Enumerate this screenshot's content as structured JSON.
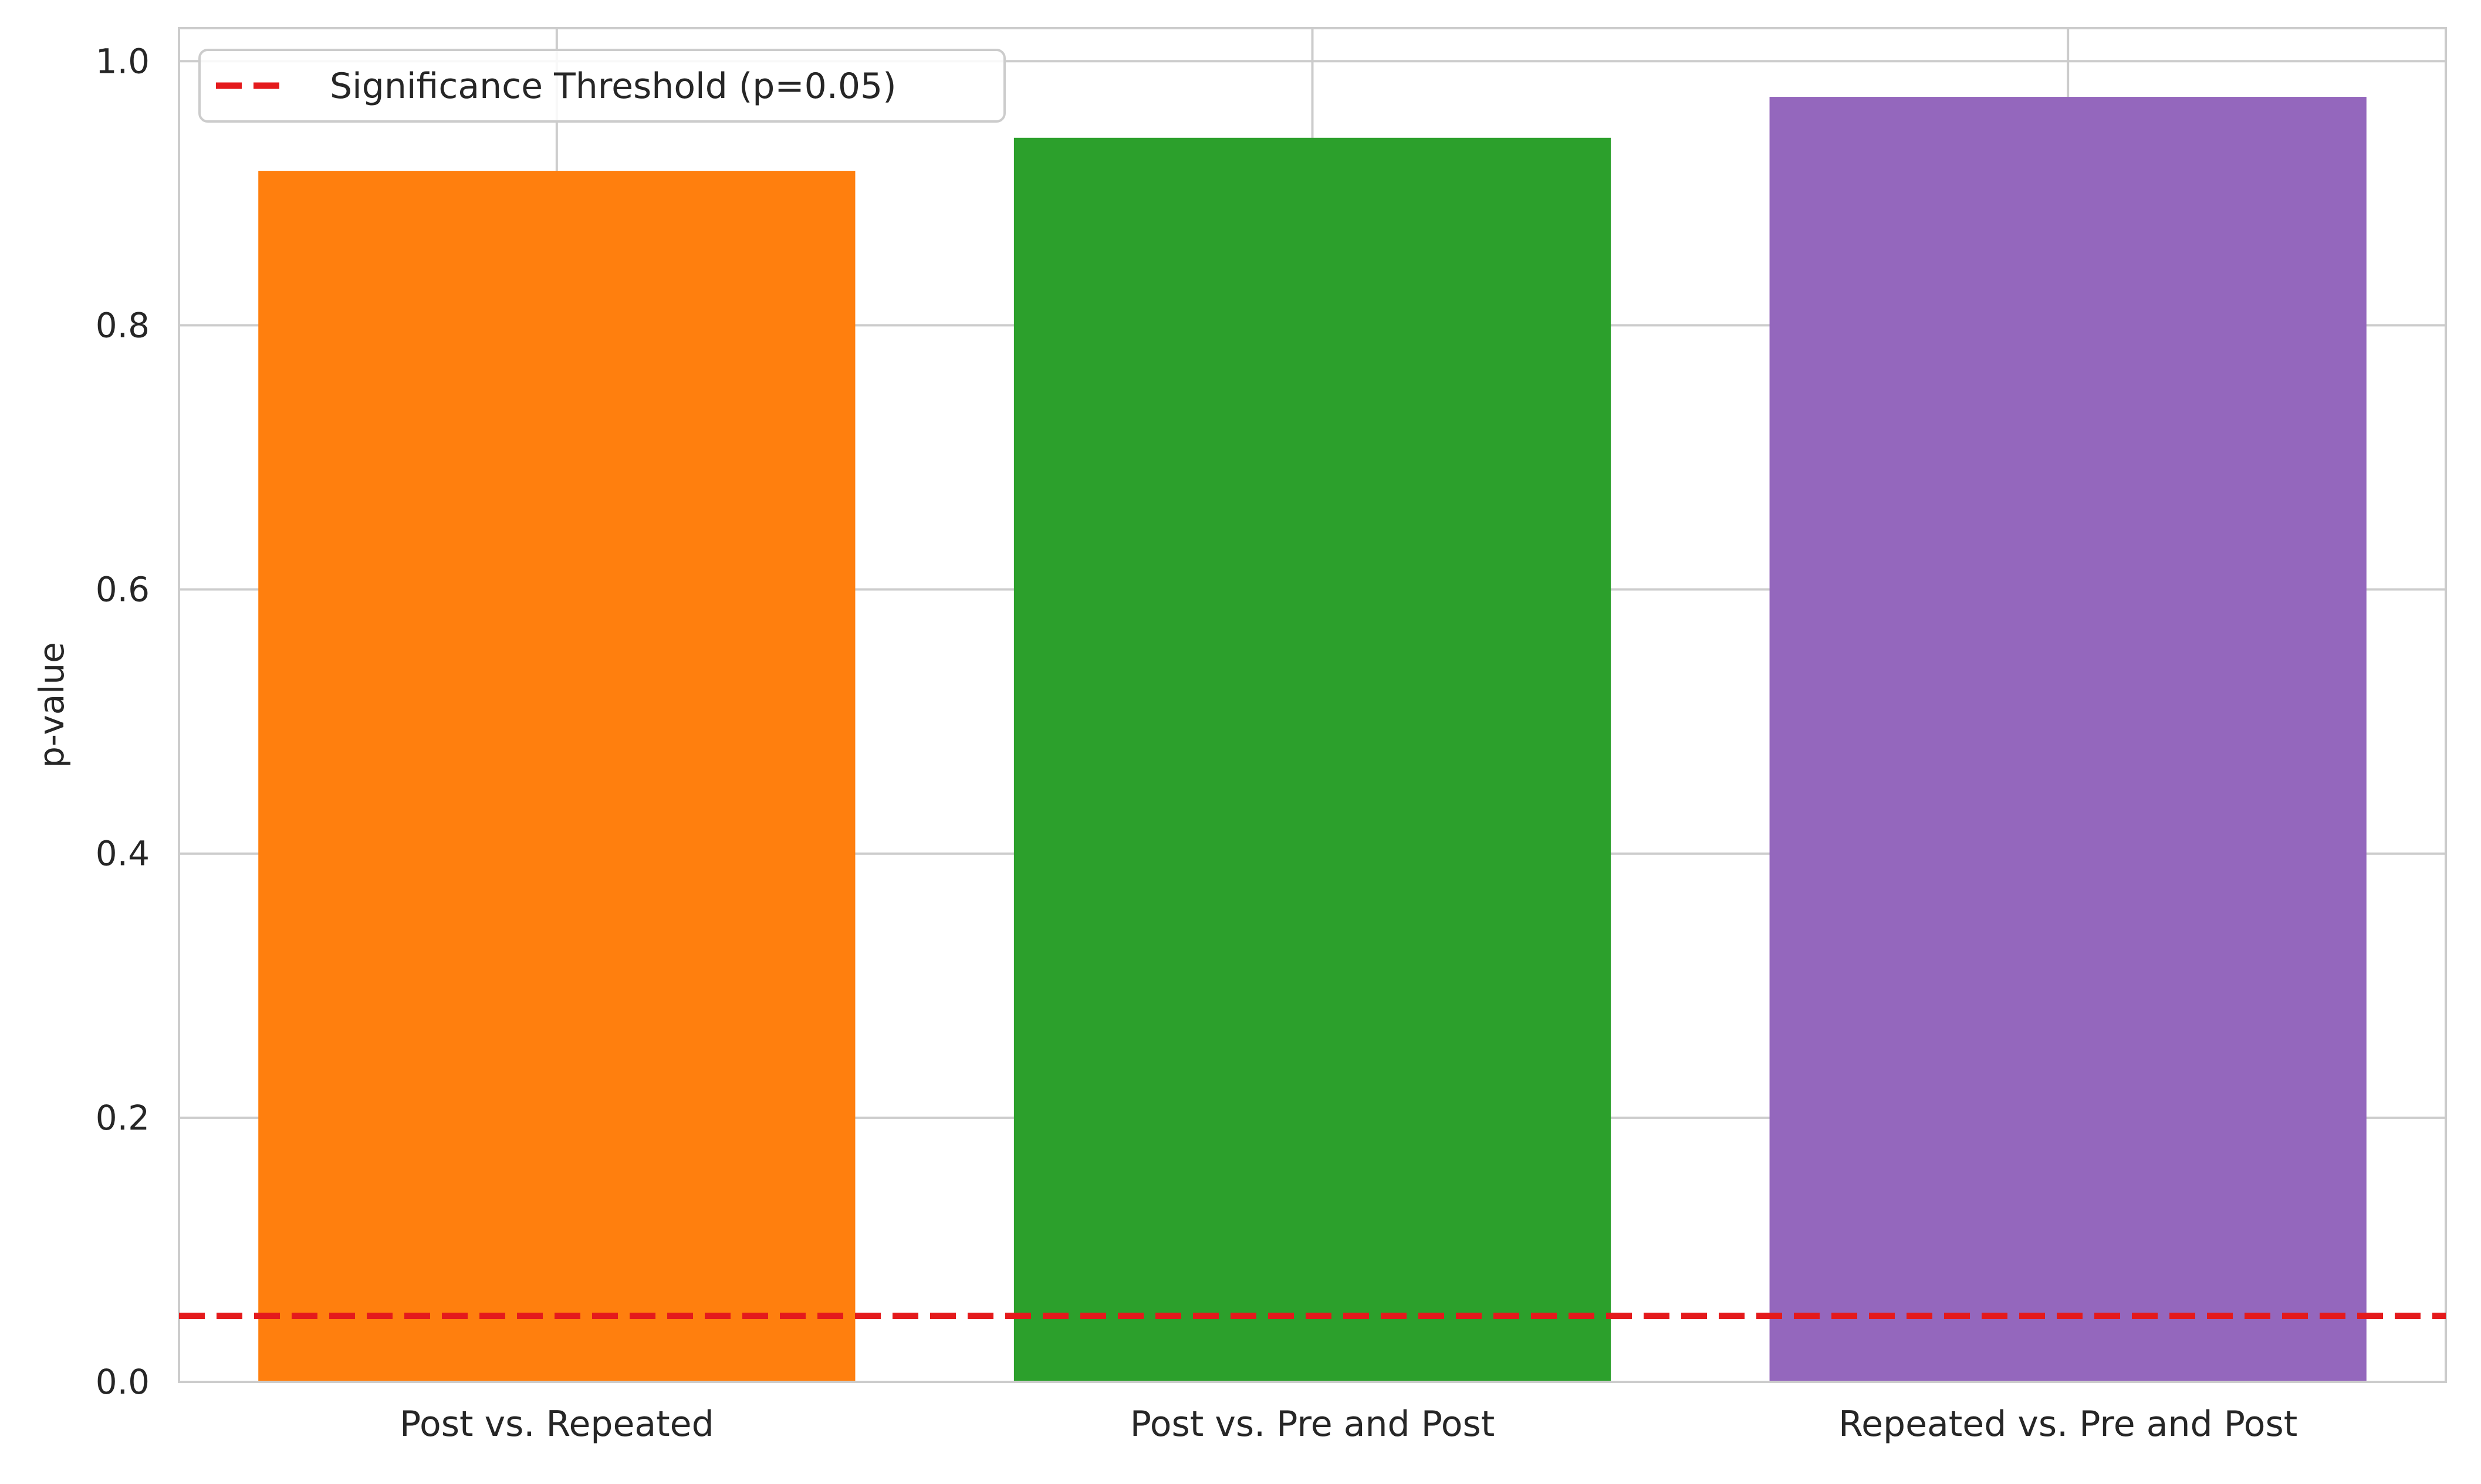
{
  "chart_data": {
    "type": "bar",
    "title": "",
    "xlabel": "",
    "ylabel": "p-value",
    "categories": [
      "Post vs. Repeated",
      "Post vs. Pre and Post",
      "Repeated vs. Pre and Post"
    ],
    "values": [
      0.917,
      0.942,
      0.973
    ],
    "bar_colors": [
      "#ff7f0e",
      "#2ca02c",
      "#9467bd"
    ],
    "ylim": [
      0,
      1.025
    ],
    "yticks": [
      0.0,
      0.2,
      0.4,
      0.6,
      0.8,
      1.0
    ],
    "ytick_labels": [
      "0.0",
      "0.2",
      "0.4",
      "0.6",
      "0.8",
      "1.0"
    ],
    "grid": true,
    "threshold": {
      "value": 0.05,
      "label": "Significance Threshold (p=0.05)",
      "color": "#e41a1c",
      "style": "dashed"
    },
    "legend": {
      "placement": "top-left",
      "entries": [
        "Significance Threshold (p=0.05)"
      ]
    }
  }
}
